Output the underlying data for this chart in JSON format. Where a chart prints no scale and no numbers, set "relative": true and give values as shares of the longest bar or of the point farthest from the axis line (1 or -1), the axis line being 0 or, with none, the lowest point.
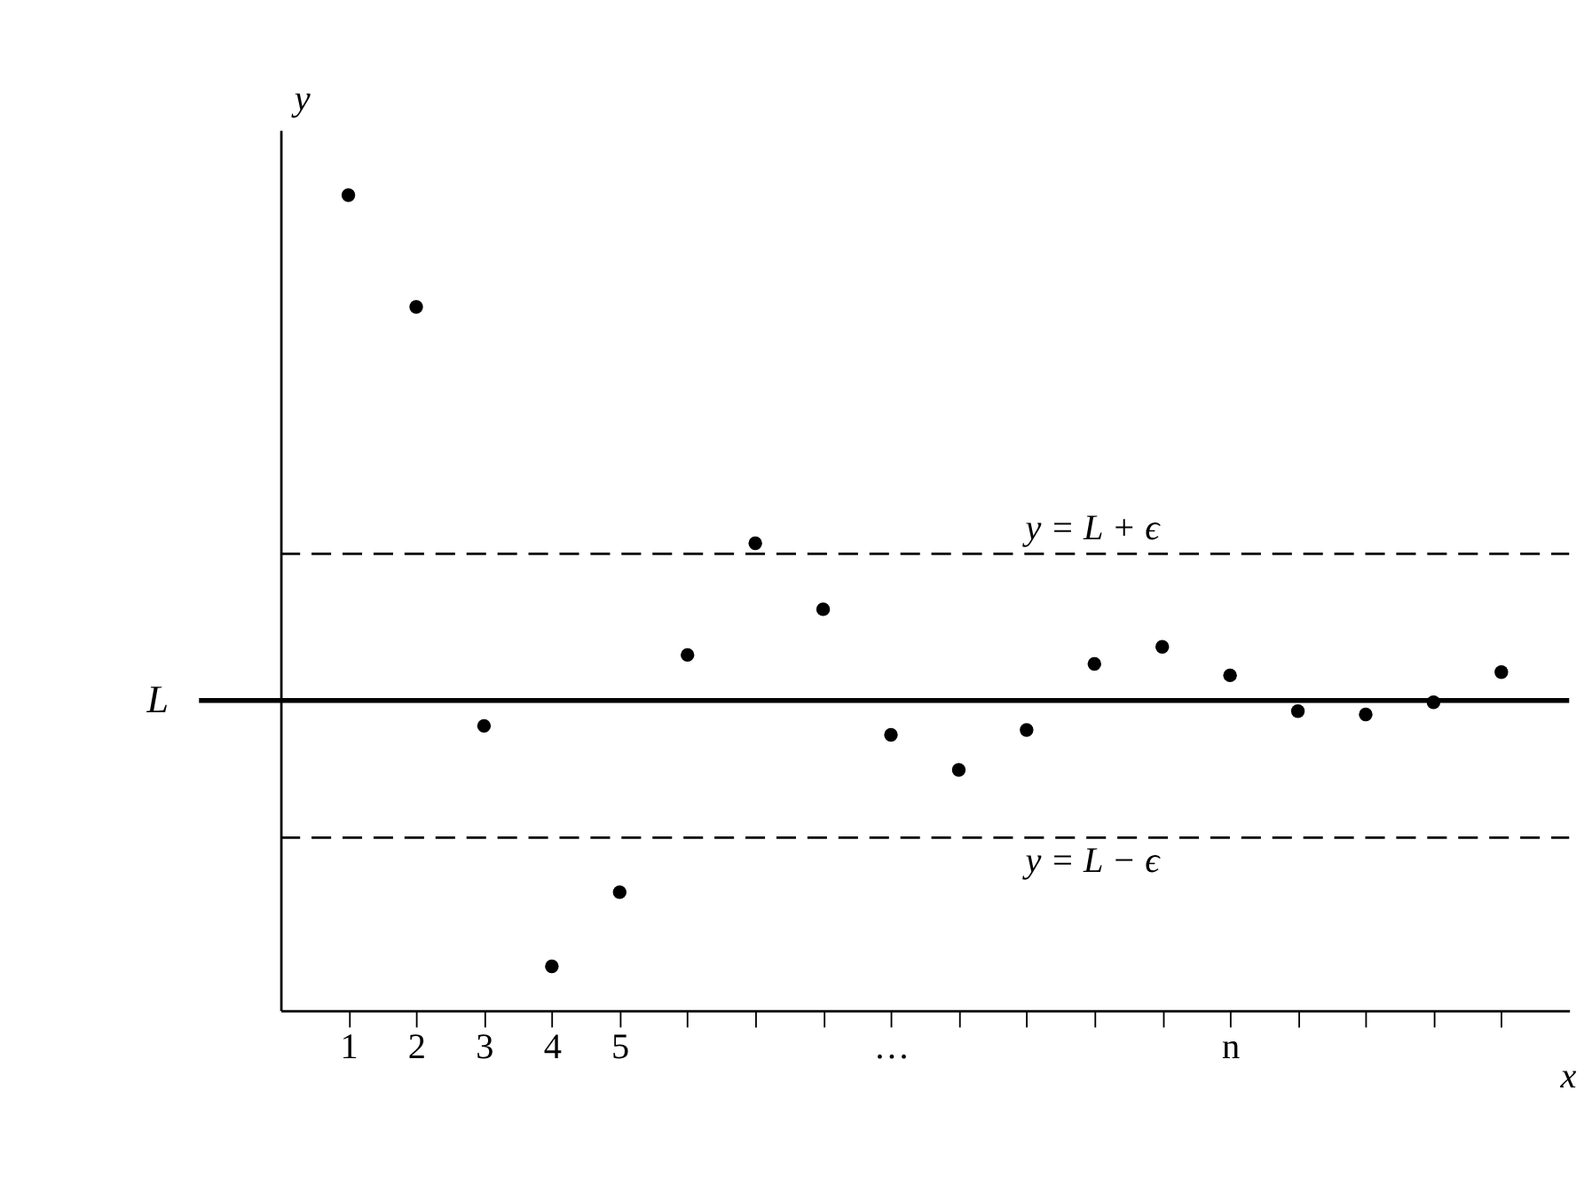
{
  "chart_data": {
    "type": "scatter",
    "relative": true,
    "xlabel": "x",
    "ylabel": "y",
    "categories": [
      "1",
      "2",
      "3",
      "4",
      "5",
      null,
      null,
      null,
      "…",
      null,
      null,
      null,
      null,
      "n",
      null,
      null,
      null,
      null
    ],
    "values": [
      1.0,
      0.863,
      0.349,
      0.054,
      0.145,
      0.436,
      0.573,
      0.492,
      0.338,
      0.295,
      0.344,
      0.425,
      0.446,
      0.411,
      0.367,
      0.363,
      0.378,
      0.415
    ],
    "color": "#000000",
    "marker": "circle",
    "grid": false,
    "ref_lines": [
      {
        "axis": "y",
        "value": 0.38,
        "label": "L",
        "line_style": "solid",
        "color": "#000000"
      },
      {
        "axis": "y",
        "value": 0.56,
        "label": "y = L + ϵ",
        "line_style": "dashed",
        "color": "#000000"
      },
      {
        "axis": "y",
        "value": 0.212,
        "label": "y = L − ϵ",
        "line_style": "dashed",
        "color": "#000000"
      }
    ]
  }
}
